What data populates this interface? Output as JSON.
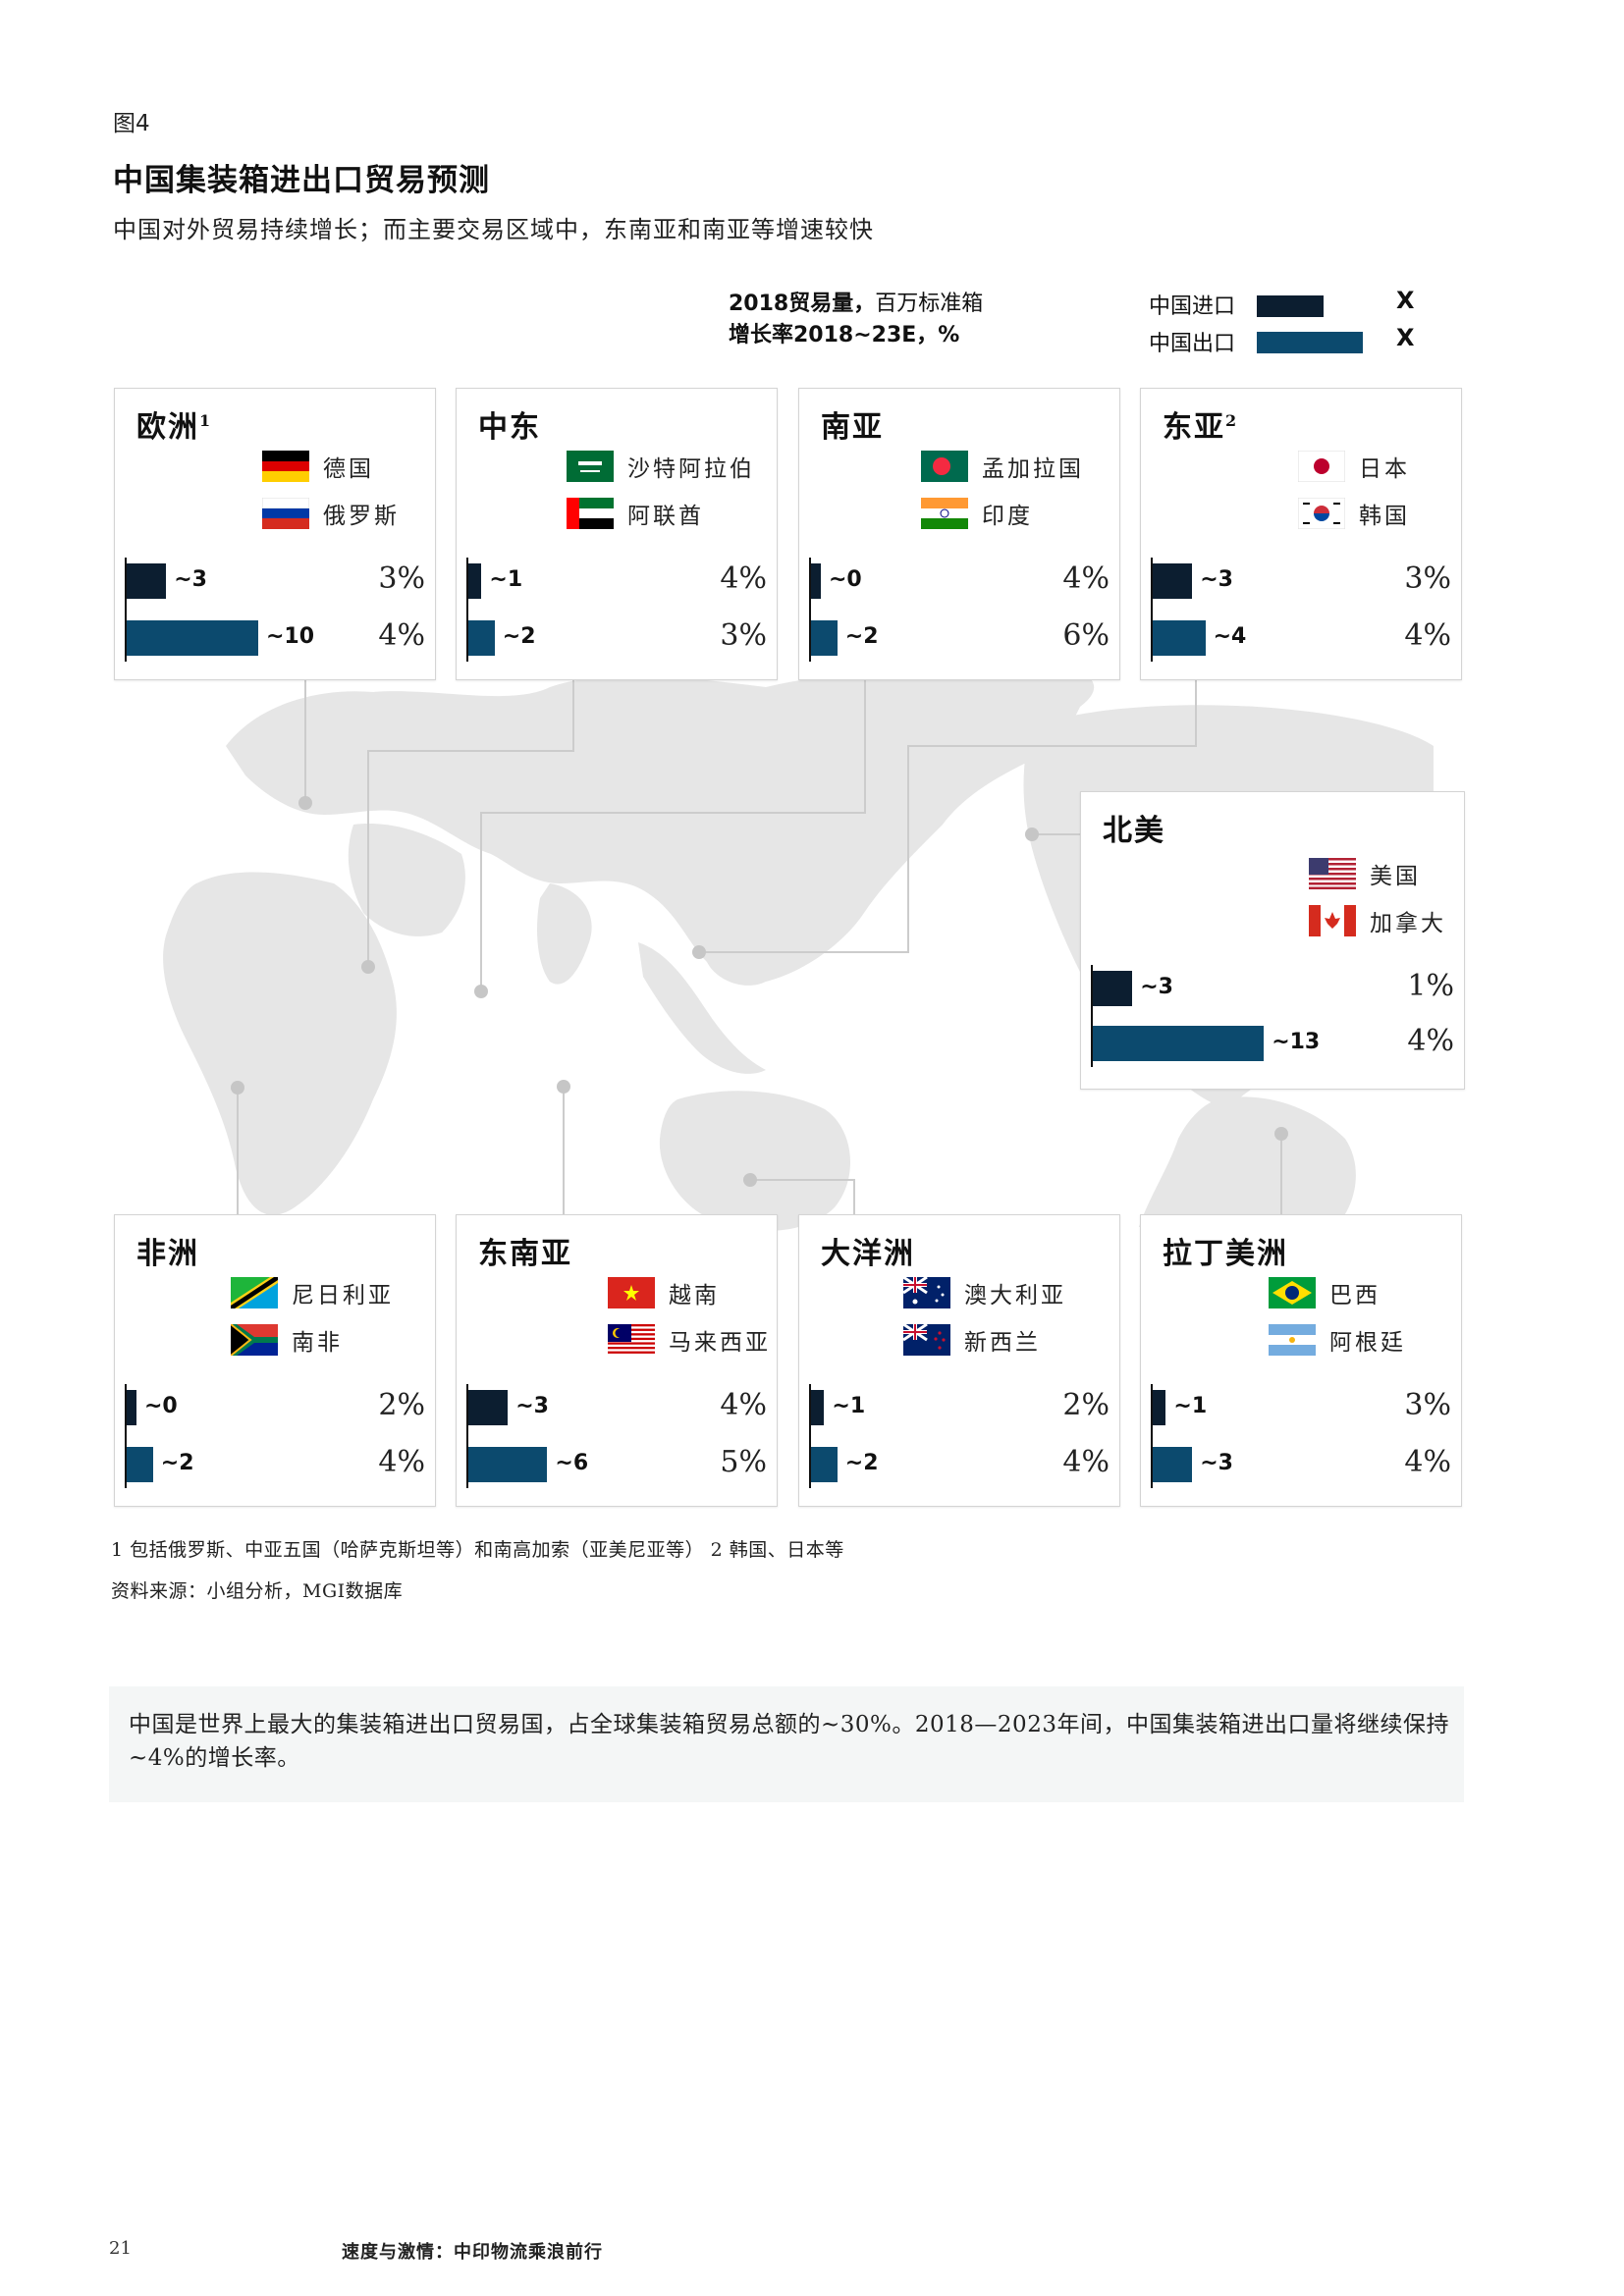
{
  "header": {
    "fig_number": "图4",
    "title": "中国集装箱进出口贸易预测",
    "subtitle": "中国对外贸易持续增长；而主要交易区域中，东南亚和南亚等增速较快"
  },
  "legend": {
    "metric_line1_bold": "2018贸易量，",
    "metric_line1_rest": "百万标准箱",
    "metric_line2": "增长率2018~23E，%",
    "import_label": "中国进口",
    "export_label": "中国出口",
    "import_x": "X",
    "export_x": "X"
  },
  "colors": {
    "import": "#0c1e30",
    "export": "#0c4a6e",
    "map": "#e6e6e6",
    "connector": "#cccccc",
    "callout_bg": "#f4f6f6"
  },
  "regions": [
    {
      "name": "欧洲",
      "sup": "1",
      "countries": [
        {
          "name": "德国",
          "flag": "germany-flag"
        },
        {
          "name": "俄罗斯",
          "flag": "russia-flag"
        }
      ],
      "import_label": "~3",
      "export_label": "~10",
      "import_growth": "3%",
      "export_growth": "4%"
    },
    {
      "name": "中东",
      "sup": "",
      "countries": [
        {
          "name": "沙特阿拉伯",
          "flag": "saudi-arabia-flag"
        },
        {
          "name": "阿联酋",
          "flag": "uae-flag"
        }
      ],
      "import_label": "~1",
      "export_label": "~2",
      "import_growth": "4%",
      "export_growth": "3%"
    },
    {
      "name": "南亚",
      "sup": "",
      "countries": [
        {
          "name": "孟加拉国",
          "flag": "bangladesh-flag"
        },
        {
          "name": "印度",
          "flag": "india-flag"
        }
      ],
      "import_label": "~0",
      "export_label": "~2",
      "import_growth": "4%",
      "export_growth": "6%"
    },
    {
      "name": "东亚",
      "sup": "2",
      "countries": [
        {
          "name": "日本",
          "flag": "japan-flag"
        },
        {
          "name": "韩国",
          "flag": "korea-flag"
        }
      ],
      "import_label": "~3",
      "export_label": "~4",
      "import_growth": "3%",
      "export_growth": "4%"
    },
    {
      "name": "北美",
      "sup": "",
      "countries": [
        {
          "name": "美国",
          "flag": "usa-flag"
        },
        {
          "name": "加拿大",
          "flag": "canada-flag"
        }
      ],
      "import_label": "~3",
      "export_label": "~13",
      "import_growth": "1%",
      "export_growth": "4%"
    },
    {
      "name": "非洲",
      "sup": "",
      "countries": [
        {
          "name": "尼日利亚",
          "flag": "tanzania-style-flag"
        },
        {
          "name": "南非",
          "flag": "south-africa-flag"
        }
      ],
      "import_label": "~0",
      "export_label": "~2",
      "import_growth": "2%",
      "export_growth": "4%"
    },
    {
      "name": "东南亚",
      "sup": "",
      "countries": [
        {
          "name": "越南",
          "flag": "vietnam-flag"
        },
        {
          "name": "马来西亚",
          "flag": "malaysia-flag"
        }
      ],
      "import_label": "~3",
      "export_label": "~6",
      "import_growth": "4%",
      "export_growth": "5%"
    },
    {
      "name": "大洋洲",
      "sup": "",
      "countries": [
        {
          "name": "澳大利亚",
          "flag": "australia-flag"
        },
        {
          "name": "新西兰",
          "flag": "new-zealand-flag"
        }
      ],
      "import_label": "~1",
      "export_label": "~2",
      "import_growth": "2%",
      "export_growth": "4%"
    },
    {
      "name": "拉丁美洲",
      "sup": "",
      "countries": [
        {
          "name": "巴西",
          "flag": "brazil-flag"
        },
        {
          "name": "阿根廷",
          "flag": "argentina-flag"
        }
      ],
      "import_label": "~1",
      "export_label": "~3",
      "import_growth": "3%",
      "export_growth": "4%"
    }
  ],
  "chart_data": {
    "type": "bar",
    "title": "中国集装箱进出口贸易预测",
    "categories": [
      "欧洲",
      "中东",
      "南亚",
      "东亚",
      "北美",
      "非洲",
      "东南亚",
      "大洋洲",
      "拉丁美洲"
    ],
    "series": [
      {
        "name": "中国进口",
        "values": [
          3,
          1,
          0,
          3,
          3,
          0,
          3,
          1,
          1
        ],
        "growth": [
          "3%",
          "4%",
          "4%",
          "3%",
          "1%",
          "2%",
          "4%",
          "2%",
          "3%"
        ]
      },
      {
        "name": "中国出口",
        "values": [
          10,
          2,
          2,
          4,
          13,
          2,
          6,
          2,
          3
        ],
        "growth": [
          "4%",
          "3%",
          "6%",
          "4%",
          "4%",
          "4%",
          "5%",
          "4%",
          "4%"
        ]
      }
    ]
  },
  "footnotes": {
    "note": "1 包括俄罗斯、中亚五国（哈萨克斯坦等）和南高加索（亚美尼亚等） 2 韩国、日本等",
    "source": "资料来源：小组分析，MGI数据库"
  },
  "callout": {
    "text": "中国是世界上最大的集装箱进出口贸易国，占全球集装箱贸易总额的~30%。2018—2023年间，中国集装箱进出口量将继续保持~4%的增长率。"
  },
  "footer": {
    "page_number": "21",
    "title": "速度与激情：中印物流乘浪前行"
  }
}
